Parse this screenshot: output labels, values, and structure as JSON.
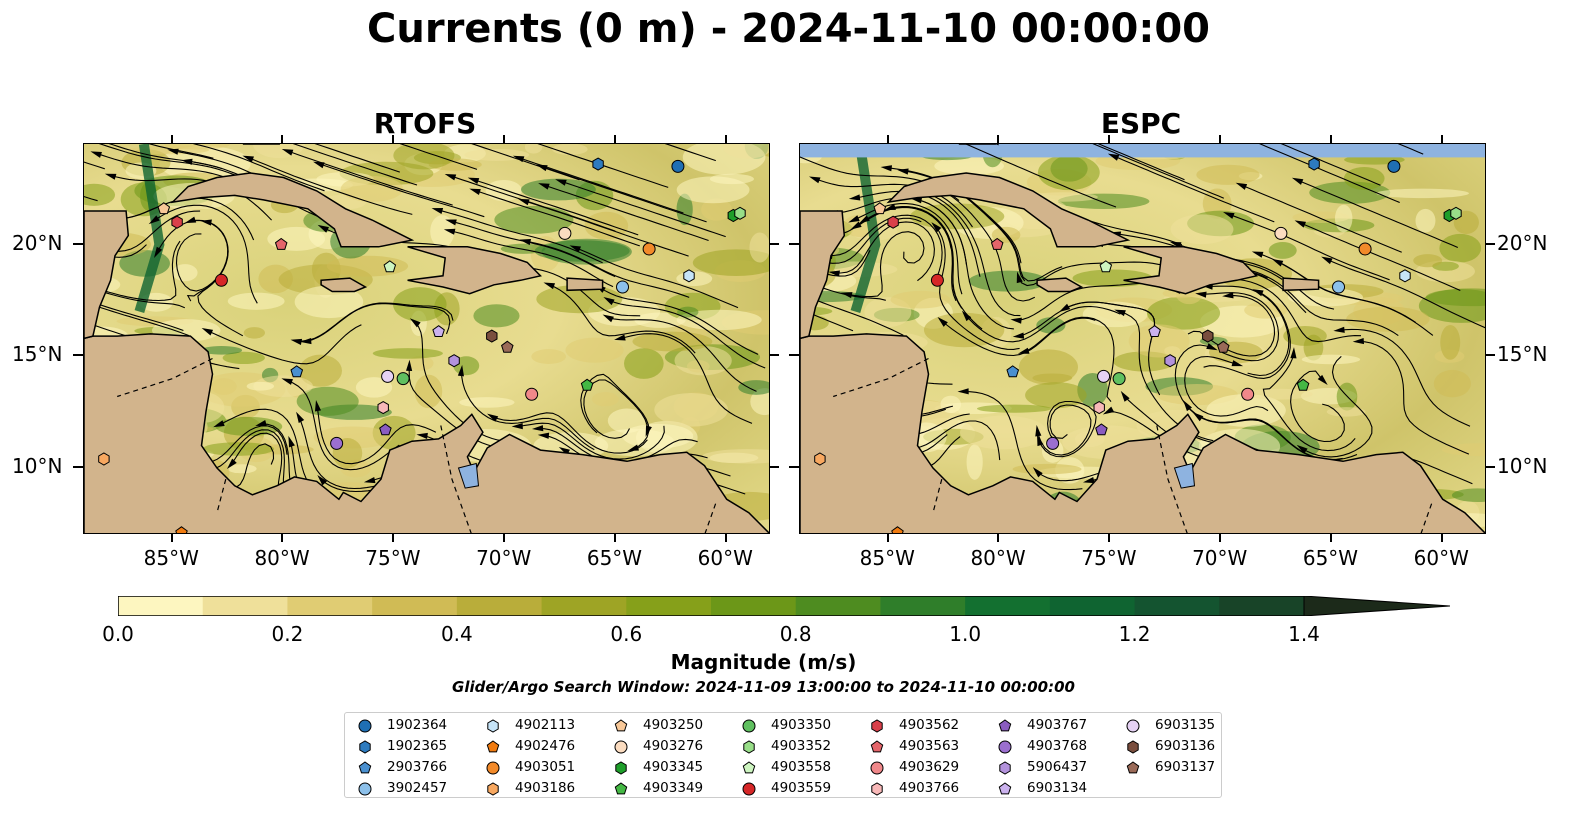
{
  "title": "Currents (0 m) - 2024-11-10 00:00:00",
  "panels": [
    {
      "title": "RTOFS"
    },
    {
      "title": "ESPC"
    }
  ],
  "axes": {
    "lon_labels": [
      "85°W",
      "80°W",
      "75°W",
      "70°W",
      "65°W",
      "60°W"
    ],
    "lat_labels": [
      "20°N",
      "15°N",
      "10°N"
    ],
    "lon_range": [
      -89,
      -58
    ],
    "lat_range": [
      7,
      24.5
    ]
  },
  "colorbar": {
    "label": "Magnitude (m/s)",
    "ticks": [
      "0.0",
      "0.2",
      "0.4",
      "0.6",
      "0.8",
      "1.0",
      "1.2",
      "1.4"
    ],
    "range": [
      0,
      1.5
    ],
    "colors": [
      "#fdf6c0",
      "#efe09a",
      "#e0cc73",
      "#d0bb55",
      "#b9ad3a",
      "#9ea425",
      "#86a01a",
      "#6c9718",
      "#4e8c20",
      "#2f7e2a",
      "#137030",
      "#0f6431",
      "#145430",
      "#184428",
      "#1a3620",
      "#1c2a1a"
    ],
    "extend": "max"
  },
  "search_window": "Glider/Argo Search Window: 2024-11-09 13:00:00 to 2024-11-10 00:00:00",
  "colors": {
    "land": "#d2b48c",
    "lakes": "#8eb3e0",
    "ocean_base": "#e4da8a"
  },
  "legend": [
    {
      "id": "1902364",
      "marker": "circle",
      "color": "#1f6fb4"
    },
    {
      "id": "1902365",
      "marker": "hexagon",
      "color": "#2d7bbf"
    },
    {
      "id": "2903766",
      "marker": "pentagon",
      "color": "#4a90d0"
    },
    {
      "id": "3902457",
      "marker": "circle",
      "color": "#8cc0ea"
    },
    {
      "id": "4902113",
      "marker": "hexagon",
      "color": "#c6e4f8"
    },
    {
      "id": "4902476",
      "marker": "pentagon",
      "color": "#f07b10"
    },
    {
      "id": "4903051",
      "marker": "circle",
      "color": "#f28a2a"
    },
    {
      "id": "4903186",
      "marker": "hexagon",
      "color": "#f8a860"
    },
    {
      "id": "4903250",
      "marker": "pentagon",
      "color": "#f8c898"
    },
    {
      "id": "4903276",
      "marker": "circle",
      "color": "#fbdcc0"
    },
    {
      "id": "4903345",
      "marker": "hexagon",
      "color": "#1e9e2a"
    },
    {
      "id": "4903349",
      "marker": "pentagon",
      "color": "#44b844"
    },
    {
      "id": "4903350",
      "marker": "circle",
      "color": "#60c060"
    },
    {
      "id": "4903352",
      "marker": "hexagon",
      "color": "#98de88"
    },
    {
      "id": "4903558",
      "marker": "pentagon",
      "color": "#cdf5c0"
    },
    {
      "id": "4903559",
      "marker": "circle",
      "color": "#d62728"
    },
    {
      "id": "4903562",
      "marker": "hexagon",
      "color": "#d9404a"
    },
    {
      "id": "4903563",
      "marker": "pentagon",
      "color": "#e4656a"
    },
    {
      "id": "4903629",
      "marker": "circle",
      "color": "#f0888a"
    },
    {
      "id": "4903766",
      "marker": "hexagon",
      "color": "#f8b8b8"
    },
    {
      "id": "4903767",
      "marker": "pentagon",
      "color": "#8a5cc0"
    },
    {
      "id": "4903768",
      "marker": "circle",
      "color": "#9b6fcf"
    },
    {
      "id": "5906437",
      "marker": "hexagon",
      "color": "#b392dc"
    },
    {
      "id": "6903134",
      "marker": "pentagon",
      "color": "#cbb2ee"
    },
    {
      "id": "6903135",
      "marker": "circle",
      "color": "#e6d2f4"
    },
    {
      "id": "6903136",
      "marker": "hexagon",
      "color": "#7a4e3e"
    },
    {
      "id": "6903137",
      "marker": "pentagon",
      "color": "#9a6a58"
    }
  ],
  "floats": [
    {
      "id": "1902364",
      "lon": -62.2,
      "lat": 23.5
    },
    {
      "id": "1902365",
      "lon": -65.8,
      "lat": 23.6
    },
    {
      "id": "2903766",
      "lon": -79.4,
      "lat": 14.3
    },
    {
      "id": "3902457",
      "lon": -64.7,
      "lat": 18.1
    },
    {
      "id": "4902113",
      "lon": -61.7,
      "lat": 18.6
    },
    {
      "id": "4902476",
      "lon": -84.6,
      "lat": 7.1
    },
    {
      "id": "4903051",
      "lon": -63.5,
      "lat": 19.8
    },
    {
      "id": "4903186",
      "lon": -88.1,
      "lat": 10.4
    },
    {
      "id": "4903250",
      "lon": -85.4,
      "lat": 21.6
    },
    {
      "id": "4903276",
      "lon": -67.3,
      "lat": 20.5
    },
    {
      "id": "4903345",
      "lon": -59.7,
      "lat": 21.3
    },
    {
      "id": "4903349",
      "lon": -66.3,
      "lat": 13.7
    },
    {
      "id": "4903350",
      "lon": -74.6,
      "lat": 14.0
    },
    {
      "id": "4903352",
      "lon": -59.4,
      "lat": 21.4
    },
    {
      "id": "4903558",
      "lon": -75.2,
      "lat": 19.0
    },
    {
      "id": "4903559",
      "lon": -82.8,
      "lat": 18.4
    },
    {
      "id": "4903562",
      "lon": -84.8,
      "lat": 21.0
    },
    {
      "id": "4903563",
      "lon": -80.1,
      "lat": 20.0
    },
    {
      "id": "4903629",
      "lon": -68.8,
      "lat": 13.3
    },
    {
      "id": "4903766",
      "lon": -75.5,
      "lat": 12.7
    },
    {
      "id": "4903767",
      "lon": -75.4,
      "lat": 11.7
    },
    {
      "id": "4903768",
      "lon": -77.6,
      "lat": 11.1
    },
    {
      "id": "5906437",
      "lon": -72.3,
      "lat": 14.8
    },
    {
      "id": "6903134",
      "lon": -73.0,
      "lat": 16.1
    },
    {
      "id": "6903135",
      "lon": -75.3,
      "lat": 14.1
    },
    {
      "id": "6903136",
      "lon": -70.6,
      "lat": 15.9
    },
    {
      "id": "6903137",
      "lon": -69.9,
      "lat": 15.4
    }
  ]
}
